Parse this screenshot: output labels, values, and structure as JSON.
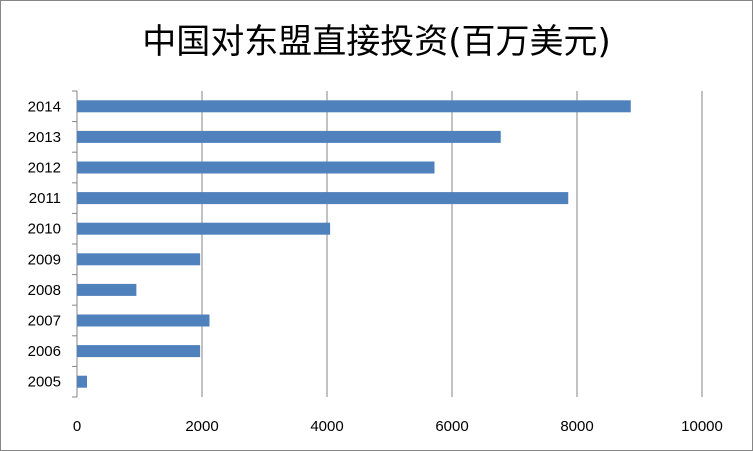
{
  "chart_data": {
    "type": "bar",
    "orientation": "horizontal",
    "title": "中国对东盟直接投资(百万美元)",
    "categories": [
      "2005",
      "2006",
      "2007",
      "2008",
      "2009",
      "2010",
      "2011",
      "2012",
      "2013",
      "2014"
    ],
    "values": [
      160,
      1970,
      2120,
      950,
      1970,
      4050,
      7860,
      5720,
      6780,
      8860
    ],
    "xlim": [
      0,
      10000
    ],
    "x_ticks": [
      "0",
      "2000",
      "4000",
      "6000",
      "8000",
      "10000"
    ],
    "grid": true,
    "legend": "none",
    "bar_color": "#4F81BD"
  }
}
